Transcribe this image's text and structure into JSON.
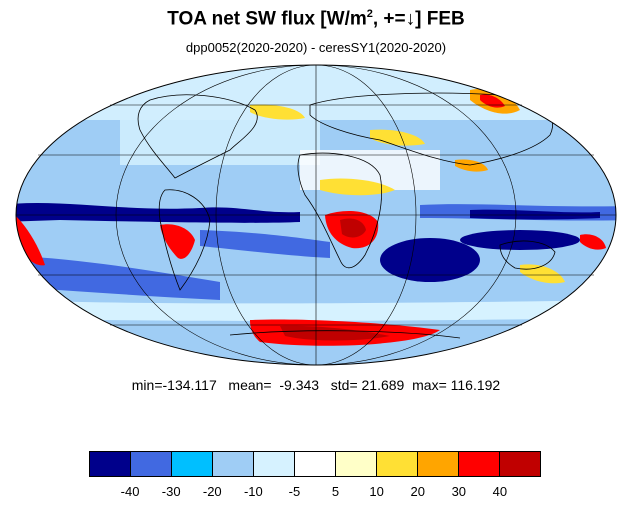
{
  "title": {
    "prefix": "TOA net SW flux [W/m",
    "sup": "2",
    "suffix": ", +=↓]  FEB"
  },
  "subtitle": "dpp0052(2020-2020) - ceresSY1(2020-2020)",
  "stats": {
    "min_label": "min=",
    "min": "-134.117",
    "mean_label": "mean=",
    "mean": "-9.343",
    "std_label": "std=",
    "std": "21.689",
    "max_label": "max=",
    "max": "116.192"
  },
  "colorbar": {
    "colors": [
      "#00008b",
      "#4169e1",
      "#00bfff",
      "#9fcdf5",
      "#d6f2ff",
      "#ffffff",
      "#ffffc8",
      "#ffe034",
      "#ffa500",
      "#ff0000",
      "#c00000"
    ],
    "tick_labels": [
      "-40",
      "-30",
      "-20",
      "-10",
      "-5",
      "5",
      "10",
      "20",
      "30",
      "40"
    ]
  }
}
